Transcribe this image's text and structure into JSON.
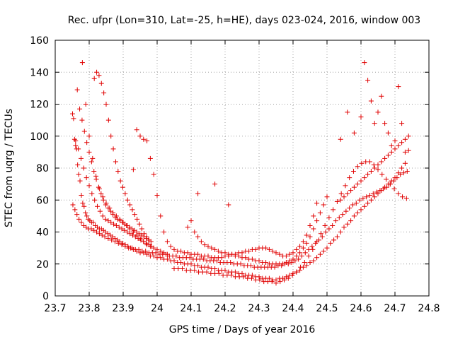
{
  "chart_data": {
    "type": "scatter",
    "title": "Rec. ufpr (Lon=310, Lat=-25, h=HE), days 023-024, 2016, window 003",
    "xlabel": "GPS time / Days of year 2016",
    "ylabel": "STEC from uqrg / TECUs",
    "xlim": [
      23.7,
      24.8
    ],
    "ylim": [
      0,
      160
    ],
    "xticks": [
      23.7,
      23.8,
      23.9,
      24.0,
      24.1,
      24.2,
      24.3,
      24.4,
      24.5,
      24.6,
      24.7,
      24.8
    ],
    "xtick_labels": [
      "23.7",
      "23.8",
      "23.9",
      "24",
      "24.1",
      "24.2",
      "24.3",
      "24.4",
      "24.5",
      "24.6",
      "24.7",
      "24.8"
    ],
    "yticks": [
      0,
      20,
      40,
      60,
      80,
      100,
      120,
      140,
      160
    ],
    "ytick_labels": [
      "0",
      "20",
      "40",
      "60",
      "80",
      "100",
      "120",
      "140",
      "160"
    ],
    "grid": true,
    "legend": "none",
    "marker": "plus",
    "color": "#e00000",
    "series": [
      {
        "x": [
          23.751,
          23.754,
          23.757,
          23.76,
          23.763,
          23.766,
          23.769,
          23.773,
          23.777,
          23.781,
          23.785,
          23.789,
          23.793,
          23.797,
          23.802,
          23.807,
          23.812,
          23.818,
          23.824,
          23.83,
          23.836,
          23.842,
          23.848,
          23.855,
          23.862,
          23.869,
          23.876,
          23.883,
          23.89,
          23.898,
          23.906,
          23.914,
          23.922,
          23.93,
          23.94,
          23.95,
          23.96,
          23.97,
          23.98,
          23.99,
          24.0,
          24.01,
          24.02,
          24.03,
          24.04,
          24.05,
          24.06,
          24.07,
          24.08,
          24.09,
          24.1,
          24.11,
          24.12,
          24.13,
          24.14,
          24.15,
          24.16,
          24.17,
          24.18,
          24.19,
          24.2,
          24.21,
          24.22,
          24.23,
          24.24,
          24.25,
          24.26,
          24.27,
          24.28,
          24.29,
          24.3,
          24.31,
          24.32,
          24.33,
          24.34,
          24.35,
          24.36,
          24.37,
          24.38,
          24.39,
          24.4,
          24.41,
          24.42,
          24.43,
          24.44,
          24.45,
          24.46,
          24.47,
          24.48,
          24.49,
          24.5,
          24.51,
          24.52,
          24.53,
          24.54,
          24.55,
          24.56,
          24.57,
          24.58,
          24.59,
          24.6,
          24.61,
          24.62,
          24.63,
          24.64,
          24.65,
          24.66,
          24.67,
          24.68,
          24.69,
          24.7,
          24.71,
          24.72,
          24.73
        ],
        "y": [
          114,
          111,
          98,
          94,
          92,
          82,
          76,
          72,
          63,
          58,
          56,
          52,
          50,
          48,
          47,
          46,
          46,
          44,
          43,
          42,
          42,
          41,
          40,
          39,
          38,
          37,
          36,
          35,
          34,
          33,
          32,
          31,
          30,
          29,
          28,
          27,
          27,
          26,
          25,
          25,
          24,
          24,
          23,
          23,
          22,
          22,
          21,
          21,
          20,
          20,
          20,
          19,
          19,
          18,
          18,
          18,
          17,
          17,
          16,
          16,
          16,
          15,
          15,
          15,
          14,
          14,
          13,
          13,
          13,
          12,
          12,
          11,
          11,
          11,
          10,
          10,
          11,
          11,
          12,
          13,
          14,
          15,
          16,
          18,
          19,
          21,
          22,
          24,
          26,
          28,
          30,
          33,
          35,
          37,
          40,
          43,
          45,
          47,
          50,
          52,
          54,
          56,
          58,
          60,
          62,
          64,
          66,
          68,
          70,
          72,
          74,
          77,
          80,
          83
        ]
      },
      {
        "x": [
          23.752,
          23.758,
          23.764,
          23.77,
          23.777,
          23.784,
          23.791,
          23.798,
          23.806,
          23.814,
          23.822,
          23.83,
          23.838,
          23.846,
          23.856,
          23.866,
          23.876,
          23.886,
          23.896,
          23.906,
          23.916,
          23.926,
          23.936,
          23.946,
          23.956,
          23.966,
          23.976,
          23.986,
          23.996,
          24.006,
          24.016,
          24.026,
          24.036,
          24.046,
          24.056,
          24.066,
          24.076,
          24.086,
          24.096,
          24.106,
          24.116,
          24.126,
          24.136,
          24.146,
          24.156,
          24.166,
          24.176,
          24.186,
          24.196,
          24.206,
          24.216,
          24.226,
          24.236,
          24.246,
          24.256,
          24.266,
          24.276,
          24.286,
          24.296,
          24.306,
          24.316,
          24.326,
          24.336,
          24.346,
          24.356,
          24.366,
          24.376,
          24.386,
          24.396,
          24.406,
          24.416,
          24.426,
          24.436,
          24.446,
          24.456,
          24.466,
          24.476,
          24.486,
          24.496,
          24.506,
          24.516,
          24.526,
          24.536,
          24.546,
          24.556,
          24.566,
          24.576,
          24.586,
          24.596,
          24.606,
          24.616,
          24.626,
          24.636,
          24.646,
          24.656,
          24.666,
          24.676,
          24.686,
          24.696,
          24.706,
          24.716,
          24.726,
          24.736
        ],
        "y": [
          57,
          54,
          51,
          48,
          46,
          44,
          43,
          42,
          42,
          41,
          40,
          39,
          38,
          37,
          36,
          35,
          34,
          33,
          32,
          31,
          30,
          30,
          29,
          29,
          28,
          28,
          27,
          27,
          27,
          26,
          26,
          26,
          25,
          25,
          25,
          24,
          24,
          24,
          24,
          23,
          23,
          23,
          23,
          22,
          22,
          22,
          22,
          21,
          21,
          21,
          21,
          20,
          20,
          20,
          19,
          19,
          19,
          18,
          18,
          18,
          18,
          18,
          18,
          18,
          19,
          19,
          20,
          20,
          21,
          22,
          23,
          25,
          27,
          29,
          31,
          33,
          35,
          37,
          40,
          42,
          44,
          47,
          49,
          51,
          53,
          55,
          57,
          58,
          60,
          61,
          62,
          63,
          64,
          65,
          66,
          67,
          68,
          70,
          72,
          74,
          76,
          77,
          78
        ]
      },
      {
        "x": [
          23.76,
          23.768,
          23.776,
          23.784,
          23.792,
          23.8,
          23.808,
          23.816,
          23.824,
          23.832,
          23.84,
          23.848,
          23.856,
          23.864,
          23.872,
          23.88,
          23.888,
          23.896,
          23.904,
          23.912,
          23.92,
          23.928,
          23.936,
          23.944,
          23.952,
          23.96,
          23.968,
          23.976,
          23.984,
          24.05,
          24.062,
          24.074,
          24.086,
          24.098,
          24.11,
          24.122,
          24.134,
          24.146,
          24.158,
          24.17,
          24.182,
          24.194,
          24.206,
          24.218,
          24.23,
          24.242,
          24.254,
          24.266,
          24.278,
          24.29,
          24.302,
          24.314,
          24.326,
          24.338,
          24.35,
          24.362,
          24.374,
          24.386,
          24.398,
          24.41,
          24.422,
          24.434,
          24.446,
          24.458,
          24.47,
          24.482,
          24.494,
          24.506,
          24.518,
          24.53,
          24.542,
          24.554,
          24.566,
          24.578,
          24.59,
          24.602,
          24.614,
          24.626,
          24.638,
          24.65,
          24.662,
          24.674,
          24.686,
          24.698,
          24.71,
          24.722,
          24.734
        ],
        "y": [
          97,
          92,
          86,
          80,
          74,
          69,
          64,
          60,
          56,
          53,
          50,
          48,
          47,
          46,
          45,
          44,
          43,
          42,
          41,
          40,
          39,
          38,
          37,
          36,
          35,
          34,
          33,
          32,
          31,
          17,
          17,
          17,
          16,
          16,
          16,
          15,
          15,
          15,
          14,
          14,
          14,
          13,
          13,
          13,
          12,
          12,
          12,
          11,
          11,
          10,
          10,
          9,
          9,
          9,
          8,
          9,
          10,
          11,
          13,
          15,
          18,
          21,
          25,
          29,
          34,
          39,
          44,
          49,
          54,
          59,
          64,
          69,
          74,
          78,
          81,
          83,
          84,
          84,
          82,
          79,
          76,
          73,
          70,
          67,
          64,
          62,
          61
        ]
      },
      {
        "x": [
          23.765,
          23.772,
          23.779,
          23.786,
          23.793,
          23.8,
          23.807,
          23.814,
          23.821,
          23.828,
          23.835,
          23.842,
          23.849,
          23.856,
          23.863,
          23.87,
          23.877,
          23.884,
          23.891,
          23.898,
          23.905,
          23.912,
          23.919,
          23.926,
          23.933,
          23.94,
          23.947,
          23.954,
          23.961,
          23.968,
          23.975,
          23.982
        ],
        "y": [
          129,
          117,
          110,
          103,
          96,
          90,
          84,
          78,
          73,
          68,
          64,
          60,
          57,
          55,
          53,
          51,
          49,
          48,
          47,
          46,
          45,
          44,
          43,
          42,
          41,
          40,
          39,
          38,
          37,
          36,
          35,
          34
        ]
      },
      {
        "x": [
          23.78,
          23.79,
          23.8,
          23.81,
          23.82,
          23.83,
          23.84,
          23.85,
          23.86,
          23.87,
          23.88,
          23.89,
          23.9,
          23.91,
          23.92,
          23.93,
          23.94,
          23.95,
          23.96,
          23.97,
          23.98,
          23.99,
          24.0,
          24.01,
          24.02,
          24.03
        ],
        "y": [
          146,
          120,
          100,
          86,
          75,
          67,
          62,
          58,
          55,
          52,
          50,
          48,
          46,
          44,
          42,
          40,
          38,
          36,
          34,
          32,
          31,
          30,
          29,
          28,
          27,
          26
        ]
      },
      {
        "x": [
          23.815,
          23.822,
          23.829,
          23.836,
          23.843,
          23.85,
          23.857,
          23.864,
          23.871,
          23.878,
          23.885,
          23.892,
          23.899,
          23.906,
          23.913,
          23.92,
          23.927,
          23.934,
          23.941,
          23.948,
          23.955,
          23.962,
          23.969,
          23.976
        ],
        "y": [
          136,
          140,
          138,
          133,
          127,
          120,
          110,
          100,
          92,
          84,
          78,
          72,
          68,
          64,
          60,
          57,
          54,
          51,
          48,
          45,
          42,
          39,
          37,
          35
        ]
      },
      {
        "x": [
          23.93,
          23.94,
          23.95,
          23.96,
          23.97,
          23.98,
          23.99,
          24.0,
          24.01,
          24.02,
          24.03,
          24.04,
          24.05,
          24.06,
          24.07,
          24.08,
          24.09,
          24.1,
          24.11,
          24.12,
          24.13,
          24.14,
          24.15,
          24.16,
          24.17,
          24.18,
          24.19,
          24.2,
          24.21,
          24.22,
          24.23,
          24.24,
          24.25,
          24.26,
          24.27,
          24.28,
          24.29,
          24.3,
          24.31,
          24.32,
          24.33,
          24.34,
          24.35,
          24.36,
          24.37,
          24.38,
          24.39,
          24.4,
          24.41,
          24.42,
          24.43,
          24.44,
          24.45,
          24.46,
          24.47
        ],
        "y": [
          79,
          104,
          100,
          98,
          97,
          86,
          76,
          63,
          50,
          40,
          34,
          31,
          29,
          28,
          28,
          27,
          27,
          26,
          26,
          26,
          25,
          25,
          25,
          24,
          24,
          24,
          24,
          25,
          25,
          26,
          26,
          27,
          27,
          28,
          28,
          29,
          29,
          30,
          30,
          30,
          29,
          28,
          27,
          26,
          25,
          25,
          26,
          27,
          29,
          31,
          34,
          38,
          44,
          50,
          58
        ]
      },
      {
        "x": [
          24.09,
          24.1,
          24.11,
          24.12,
          24.13,
          24.14,
          24.15,
          24.16,
          24.17,
          24.18,
          24.19,
          24.2,
          24.21,
          24.22,
          24.23,
          24.24,
          24.25,
          24.26,
          24.27,
          24.28,
          24.29,
          24.3,
          24.31,
          24.32,
          24.33,
          24.34,
          24.35,
          24.36,
          24.37,
          24.38,
          24.39,
          24.4,
          24.41,
          24.42,
          24.43,
          24.44,
          24.45,
          24.46,
          24.47,
          24.48,
          24.49,
          24.5
        ],
        "y": [
          43,
          47,
          40,
          37,
          34,
          32,
          31,
          30,
          29,
          28,
          27,
          27,
          26,
          26,
          25,
          25,
          24,
          24,
          23,
          23,
          22,
          22,
          21,
          21,
          20,
          20,
          20,
          20,
          20,
          21,
          22,
          23,
          25,
          27,
          30,
          33,
          37,
          42,
          47,
          52,
          57,
          62
        ]
      },
      {
        "x": [
          24.12,
          24.17,
          24.21,
          24.54,
          24.56,
          24.58,
          24.6,
          24.61,
          24.62,
          24.63,
          24.64,
          24.65,
          24.66,
          24.67,
          24.68,
          24.69,
          24.7,
          24.71,
          24.72,
          24.73,
          24.74
        ],
        "y": [
          64,
          70,
          57,
          98,
          115,
          102,
          112,
          146,
          135,
          122,
          108,
          115,
          125,
          108,
          102,
          94,
          97,
          131,
          108,
          90,
          91
        ]
      },
      {
        "x": [
          24.54,
          24.55,
          24.56,
          24.57,
          24.58,
          24.59,
          24.6,
          24.61,
          24.62,
          24.63,
          24.64,
          24.65,
          24.66,
          24.67,
          24.68,
          24.69,
          24.7,
          24.71,
          24.72,
          24.73,
          24.74
        ],
        "y": [
          60,
          62,
          64,
          66,
          68,
          70,
          72,
          74,
          76,
          78,
          80,
          82,
          84,
          86,
          88,
          90,
          92,
          94,
          96,
          98,
          100
        ]
      }
    ]
  }
}
